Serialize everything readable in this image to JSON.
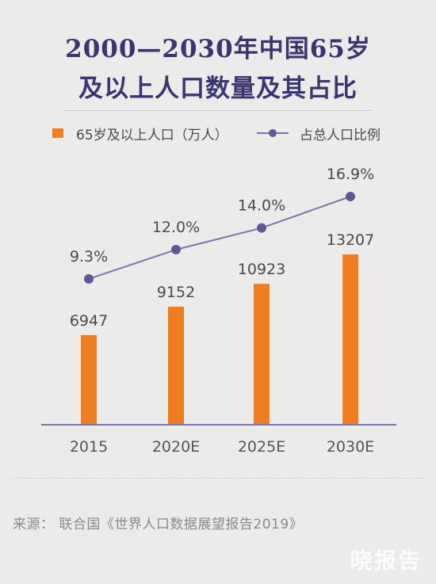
{
  "title": {
    "line1": "2000—2030年中国65岁",
    "line2": "及以上人口数量及其占比"
  },
  "legend": {
    "bar_label": "65岁及以上人口（万人）",
    "line_label": "占总人口比例"
  },
  "colors": {
    "bar": "#ef7d22",
    "line": "#7a76a8",
    "title": "#3a3470",
    "axis": "#7a76a8"
  },
  "chart_data": {
    "type": "bar",
    "categories": [
      "2015",
      "2020E",
      "2025E",
      "2030E"
    ],
    "series": [
      {
        "type": "bar",
        "values": [
          6947,
          9152,
          10923,
          13207
        ],
        "labels": [
          "6947",
          "9152",
          "10923",
          "13207"
        ]
      },
      {
        "type": "line",
        "values": [
          9.3,
          12.0,
          14.0,
          16.9
        ],
        "labels": [
          "9.3%",
          "12.0%",
          "14.0%",
          "16.9%"
        ]
      }
    ],
    "legend": "top"
  },
  "source": "来源：  联合国《世界人口数据展望报告2019》",
  "watermark": "晓报告"
}
